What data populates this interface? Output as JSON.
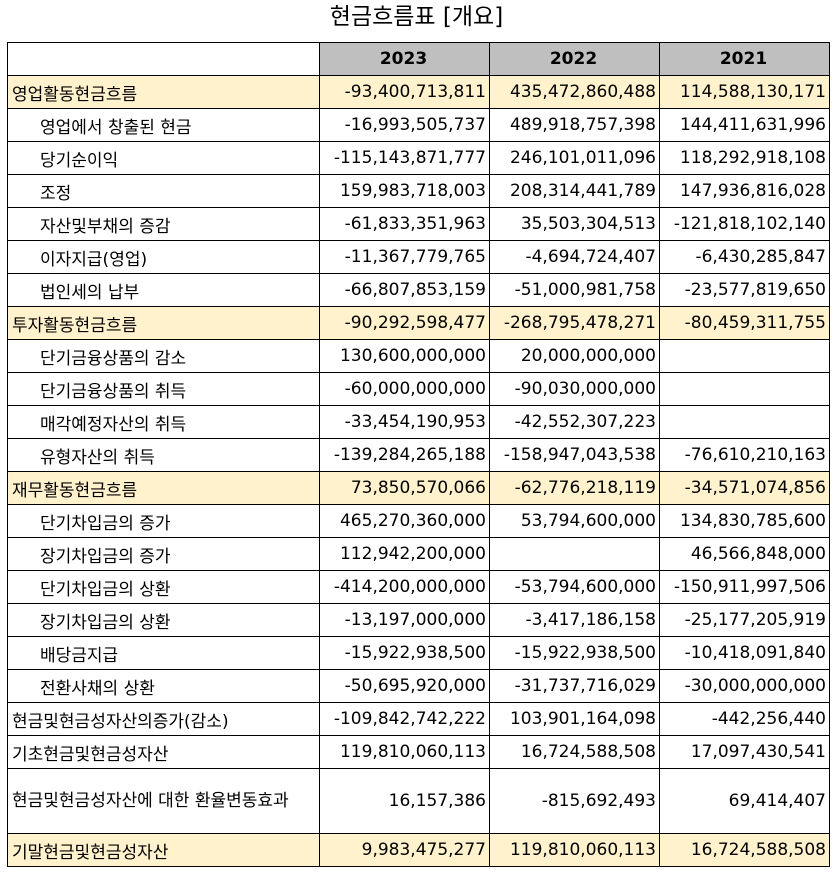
{
  "title": "현금흐름표 [개요]",
  "years": [
    "2023",
    "2022",
    "2021"
  ],
  "rows": [
    {
      "label": "영업활동현금흐름",
      "indent": false,
      "highlight": true,
      "values": [
        "-93,400,713,811",
        "435,472,860,488",
        "114,588,130,171"
      ]
    },
    {
      "label": "영업에서 창출된 현금",
      "indent": true,
      "highlight": false,
      "values": [
        "-16,993,505,737",
        "489,918,757,398",
        "144,411,631,996"
      ]
    },
    {
      "label": "당기순이익",
      "indent": true,
      "highlight": false,
      "values": [
        "-115,143,871,777",
        "246,101,011,096",
        "118,292,918,108"
      ]
    },
    {
      "label": "조정",
      "indent": true,
      "highlight": false,
      "values": [
        "159,983,718,003",
        "208,314,441,789",
        "147,936,816,028"
      ]
    },
    {
      "label": "자산및부채의 증감",
      "indent": true,
      "highlight": false,
      "values": [
        "-61,833,351,963",
        "35,503,304,513",
        "-121,818,102,140"
      ]
    },
    {
      "label": "이자지급(영업)",
      "indent": true,
      "highlight": false,
      "values": [
        "-11,367,779,765",
        "-4,694,724,407",
        "-6,430,285,847"
      ]
    },
    {
      "label": "법인세의 납부",
      "indent": true,
      "highlight": false,
      "values": [
        "-66,807,853,159",
        "-51,000,981,758",
        "-23,577,819,650"
      ]
    },
    {
      "label": "투자활동현금흐름",
      "indent": false,
      "highlight": true,
      "values": [
        "-90,292,598,477",
        "-268,795,478,271",
        "-80,459,311,755"
      ]
    },
    {
      "label": "단기금융상품의 감소",
      "indent": true,
      "highlight": false,
      "values": [
        "130,600,000,000",
        "20,000,000,000",
        ""
      ]
    },
    {
      "label": "단기금융상품의 취득",
      "indent": true,
      "highlight": false,
      "values": [
        "-60,000,000,000",
        "-90,030,000,000",
        ""
      ]
    },
    {
      "label": "매각예정자산의 취득",
      "indent": true,
      "highlight": false,
      "values": [
        "-33,454,190,953",
        "-42,552,307,223",
        ""
      ]
    },
    {
      "label": "유형자산의 취득",
      "indent": true,
      "highlight": false,
      "values": [
        "-139,284,265,188",
        "-158,947,043,538",
        "-76,610,210,163"
      ]
    },
    {
      "label": "재무활동현금흐름",
      "indent": false,
      "highlight": true,
      "values": [
        "73,850,570,066",
        "-62,776,218,119",
        "-34,571,074,856"
      ]
    },
    {
      "label": "단기차입금의 증가",
      "indent": true,
      "highlight": false,
      "values": [
        "465,270,360,000",
        "53,794,600,000",
        "134,830,785,600"
      ]
    },
    {
      "label": "장기차입금의 증가",
      "indent": true,
      "highlight": false,
      "values": [
        "112,942,200,000",
        "",
        "46,566,848,000"
      ]
    },
    {
      "label": "단기차입금의 상환",
      "indent": true,
      "highlight": false,
      "values": [
        "-414,200,000,000",
        "-53,794,600,000",
        "-150,911,997,506"
      ]
    },
    {
      "label": "장기차입금의 상환",
      "indent": true,
      "highlight": false,
      "values": [
        "-13,197,000,000",
        "-3,417,186,158",
        "-25,177,205,919"
      ]
    },
    {
      "label": "배당금지급",
      "indent": true,
      "highlight": false,
      "values": [
        "-15,922,938,500",
        "-15,922,938,500",
        "-10,418,091,840"
      ]
    },
    {
      "label": "전환사채의 상환",
      "indent": true,
      "highlight": false,
      "values": [
        "-50,695,920,000",
        "-31,737,716,029",
        "-30,000,000,000"
      ]
    },
    {
      "label": "현금및현금성자산의증가(감소)",
      "indent": false,
      "highlight": false,
      "values": [
        "-109,842,742,222",
        "103,901,164,098",
        "-442,256,440"
      ]
    },
    {
      "label": "기초현금및현금성자산",
      "indent": false,
      "highlight": false,
      "values": [
        "119,810,060,113",
        "16,724,588,508",
        "17,097,430,541"
      ]
    },
    {
      "label": "현금및현금성자산에 대한 환율변동효과",
      "indent": false,
      "highlight": false,
      "tall": true,
      "values": [
        "16,157,386",
        "-815,692,493",
        "69,414,407"
      ]
    },
    {
      "label": "기말현금및현금성자산",
      "indent": false,
      "highlight": true,
      "values": [
        "9,983,475,277",
        "119,810,060,113",
        "16,724,588,508"
      ]
    }
  ]
}
